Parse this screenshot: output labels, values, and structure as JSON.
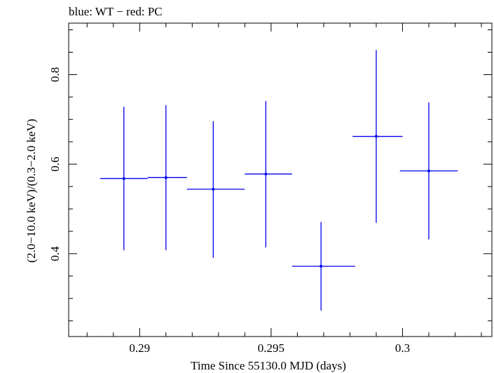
{
  "chart_data": {
    "type": "scatter",
    "title": "blue: WT − red: PC",
    "xlabel": "Time Since 55130.0 MJD (days)",
    "ylabel": "(2.0−10.0 keV)/(0.3−2.0 keV)",
    "xlim": [
      0.2873,
      0.3034
    ],
    "ylim": [
      0.215,
      0.915
    ],
    "x_ticks": [
      {
        "value": 0.29,
        "label": "0.29"
      },
      {
        "value": 0.295,
        "label": "0.295"
      },
      {
        "value": 0.3,
        "label": "0.3"
      }
    ],
    "x_minor_step": 0.001,
    "y_ticks": [
      {
        "value": 0.4,
        "label": "0.4"
      },
      {
        "value": 0.6,
        "label": "0.6"
      },
      {
        "value": 0.8,
        "label": "0.8"
      }
    ],
    "y_minor_step": 0.05,
    "grid": false,
    "series": [
      {
        "name": "WT",
        "color": "#0000ee",
        "points": [
          {
            "x": 0.2894,
            "y": 0.568,
            "xlo": 0.2885,
            "xhi": 0.2903,
            "ylo": 0.408,
            "yhi": 0.728
          },
          {
            "x": 0.291,
            "y": 0.57,
            "xlo": 0.2903,
            "xhi": 0.2918,
            "ylo": 0.408,
            "yhi": 0.732
          },
          {
            "x": 0.2928,
            "y": 0.544,
            "xlo": 0.2918,
            "xhi": 0.294,
            "ylo": 0.391,
            "yhi": 0.696
          },
          {
            "x": 0.2948,
            "y": 0.578,
            "xlo": 0.294,
            "xhi": 0.2958,
            "ylo": 0.414,
            "yhi": 0.741
          },
          {
            "x": 0.2969,
            "y": 0.372,
            "xlo": 0.2958,
            "xhi": 0.2982,
            "ylo": 0.273,
            "yhi": 0.471
          },
          {
            "x": 0.299,
            "y": 0.662,
            "xlo": 0.2981,
            "xhi": 0.3,
            "ylo": 0.469,
            "yhi": 0.855
          },
          {
            "x": 0.301,
            "y": 0.585,
            "xlo": 0.2999,
            "xhi": 0.3021,
            "ylo": 0.432,
            "yhi": 0.738
          }
        ]
      }
    ]
  }
}
